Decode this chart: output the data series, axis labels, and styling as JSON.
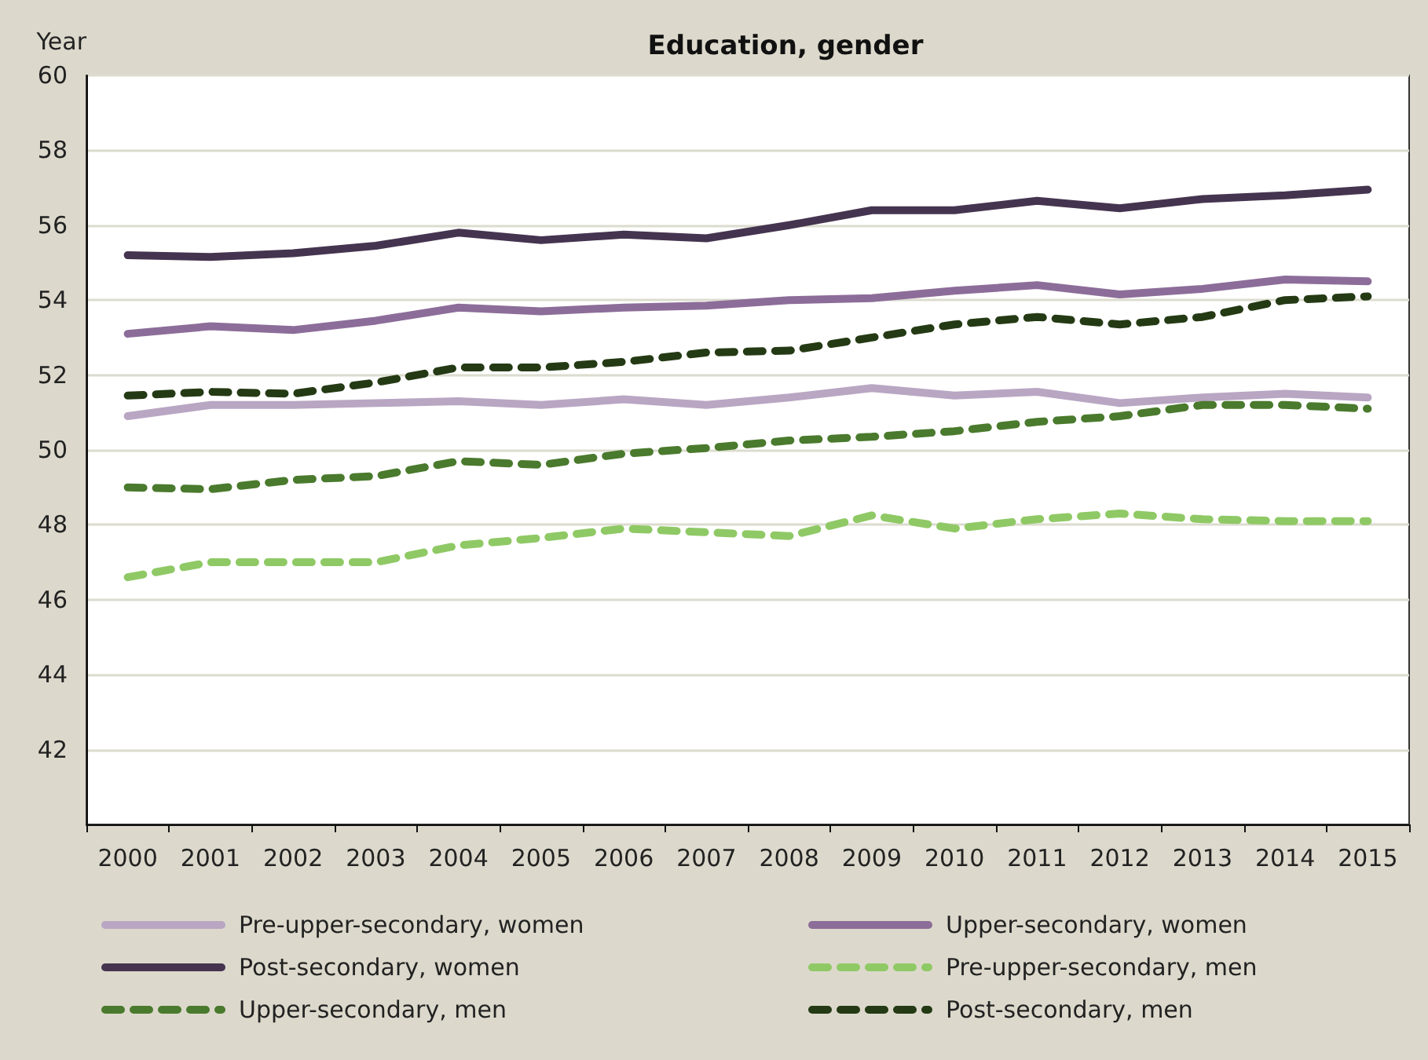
{
  "chart_data": {
    "type": "line",
    "title": "Education, gender",
    "ylabel": "Year",
    "categories": [
      "2000",
      "2001",
      "2002",
      "2003",
      "2004",
      "2005",
      "2006",
      "2007",
      "2008",
      "2009",
      "2010",
      "2011",
      "2012",
      "2013",
      "2014",
      "2015"
    ],
    "ylim": [
      40,
      60
    ],
    "yticks": [
      42,
      44,
      46,
      48,
      50,
      52,
      54,
      56,
      58,
      60
    ],
    "grid": "y",
    "legend": "bottom",
    "marker": "none",
    "series": [
      {
        "name": "Pre-upper-secondary, women",
        "color": "#b9a6c3",
        "line_style": "solid",
        "values": [
          50.9,
          51.2,
          51.2,
          51.25,
          51.3,
          51.2,
          51.35,
          51.2,
          51.4,
          51.65,
          51.45,
          51.55,
          51.25,
          51.4,
          51.5,
          51.4
        ]
      },
      {
        "name": "Upper-secondary, women",
        "color": "#8c6d99",
        "line_style": "solid",
        "values": [
          53.1,
          53.3,
          53.2,
          53.45,
          53.8,
          53.7,
          53.8,
          53.85,
          54.0,
          54.05,
          54.25,
          54.4,
          54.15,
          54.3,
          54.55,
          54.5
        ]
      },
      {
        "name": "Post-secondary, women",
        "color": "#45344f",
        "line_style": "solid",
        "values": [
          55.2,
          55.15,
          55.25,
          55.45,
          55.8,
          55.6,
          55.75,
          55.65,
          56.0,
          56.4,
          56.4,
          56.65,
          56.45,
          56.7,
          56.8,
          56.95
        ]
      },
      {
        "name": "Pre-upper-secondary, men",
        "color": "#8fc965",
        "line_style": "dashed",
        "values": [
          46.6,
          47.0,
          47.0,
          47.0,
          47.45,
          47.65,
          47.9,
          47.8,
          47.7,
          48.25,
          47.9,
          48.15,
          48.3,
          48.15,
          48.1,
          48.1
        ]
      },
      {
        "name": "Upper-secondary, men",
        "color": "#4a7a2d",
        "line_style": "dashed",
        "values": [
          49.0,
          48.95,
          49.2,
          49.3,
          49.7,
          49.6,
          49.9,
          50.05,
          50.25,
          50.35,
          50.5,
          50.75,
          50.9,
          51.2,
          51.2,
          51.1
        ]
      },
      {
        "name": "Post-secondary, men",
        "color": "#243a14",
        "line_style": "dashed",
        "values": [
          51.45,
          51.55,
          51.5,
          51.8,
          52.2,
          52.2,
          52.35,
          52.6,
          52.65,
          53.0,
          53.35,
          53.55,
          53.35,
          53.55,
          54.0,
          54.1
        ]
      }
    ]
  }
}
